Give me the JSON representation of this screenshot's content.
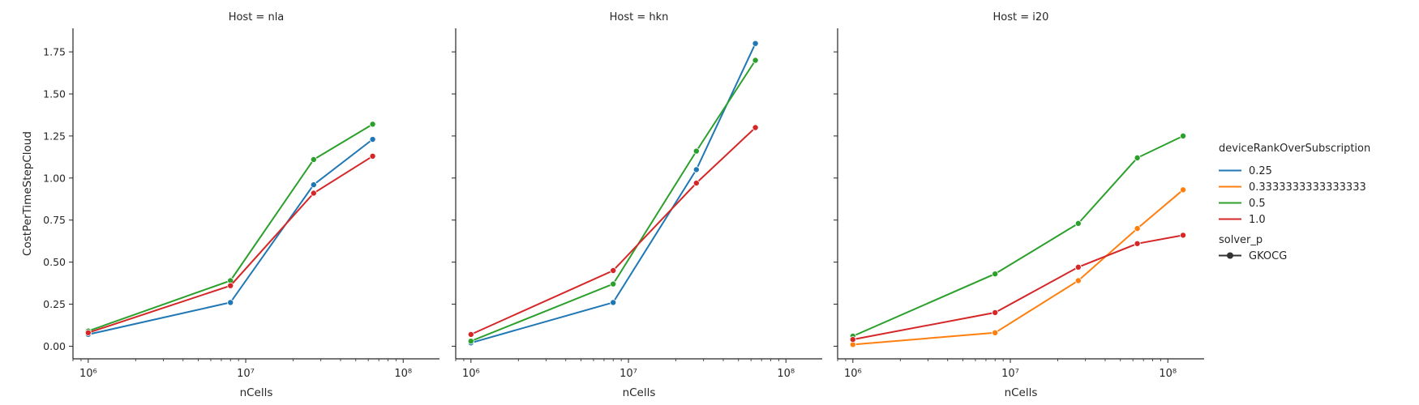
{
  "chart_data": [
    {
      "type": "line",
      "title": "Host = nla",
      "xlabel": "nCells",
      "ylabel": "CostPerTimeStepCloud",
      "xscale": "log",
      "xlim": [
        800000,
        170000000
      ],
      "ylim": [
        -0.075,
        1.89
      ],
      "yticks": [
        "0.00",
        "0.25",
        "0.50",
        "0.75",
        "1.00",
        "1.25",
        "1.50",
        "1.75"
      ],
      "xticks": [
        "10⁶",
        "10⁷",
        "10⁸"
      ],
      "series": [
        {
          "name": "0.25",
          "color": "#1f77b4",
          "points": [
            [
              1000000,
              0.07
            ],
            [
              8000000,
              0.26
            ],
            [
              27000000,
              0.96
            ],
            [
              64000000,
              1.23
            ]
          ]
        },
        {
          "name": "0.5",
          "color": "#2ca02c",
          "points": [
            [
              1000000,
              0.09
            ],
            [
              8000000,
              0.39
            ],
            [
              27000000,
              1.11
            ],
            [
              64000000,
              1.32
            ]
          ]
        },
        {
          "name": "1.0",
          "color": "#d62728",
          "points": [
            [
              1000000,
              0.08
            ],
            [
              8000000,
              0.36
            ],
            [
              27000000,
              0.91
            ],
            [
              64000000,
              1.13
            ]
          ]
        }
      ]
    },
    {
      "type": "line",
      "title": "Host = hkn",
      "xlabel": "nCells",
      "ylabel": "",
      "xscale": "log",
      "xlim": [
        800000,
        170000000
      ],
      "ylim": [
        -0.075,
        1.89
      ],
      "xticks": [
        "10⁶",
        "10⁷",
        "10⁸"
      ],
      "series": [
        {
          "name": "0.25",
          "color": "#1f77b4",
          "points": [
            [
              1000000,
              0.02
            ],
            [
              8000000,
              0.26
            ],
            [
              27000000,
              1.05
            ],
            [
              64000000,
              1.8
            ]
          ]
        },
        {
          "name": "0.5",
          "color": "#2ca02c",
          "points": [
            [
              1000000,
              0.03
            ],
            [
              8000000,
              0.37
            ],
            [
              27000000,
              1.16
            ],
            [
              64000000,
              1.7
            ]
          ]
        },
        {
          "name": "1.0",
          "color": "#d62728",
          "points": [
            [
              1000000,
              0.07
            ],
            [
              8000000,
              0.45
            ],
            [
              27000000,
              0.97
            ],
            [
              64000000,
              1.3
            ]
          ]
        }
      ]
    },
    {
      "type": "line",
      "title": "Host = i20",
      "xlabel": "nCells",
      "ylabel": "",
      "xscale": "log",
      "xlim": [
        800000,
        170000000
      ],
      "ylim": [
        -0.075,
        1.89
      ],
      "xticks": [
        "10⁶",
        "10⁷",
        "10⁸"
      ],
      "series": [
        {
          "name": "0.3333333333333333",
          "color": "#ff7f0e",
          "points": [
            [
              1000000,
              0.01
            ],
            [
              8000000,
              0.08
            ],
            [
              27000000,
              0.39
            ],
            [
              64000000,
              0.7
            ],
            [
              125000000,
              0.93
            ]
          ]
        },
        {
          "name": "0.5",
          "color": "#2ca02c",
          "points": [
            [
              1000000,
              0.06
            ],
            [
              8000000,
              0.43
            ],
            [
              27000000,
              0.73
            ],
            [
              64000000,
              1.12
            ],
            [
              125000000,
              1.25
            ]
          ]
        },
        {
          "name": "1.0",
          "color": "#d62728",
          "points": [
            [
              1000000,
              0.04
            ],
            [
              8000000,
              0.2
            ],
            [
              27000000,
              0.47
            ],
            [
              64000000,
              0.61
            ],
            [
              125000000,
              0.66
            ]
          ]
        }
      ]
    }
  ],
  "legend": {
    "hue_title": "deviceRankOverSubscription",
    "hue_items": [
      {
        "label": "0.25",
        "color": "#1f77b4"
      },
      {
        "label": "0.3333333333333333",
        "color": "#ff7f0e"
      },
      {
        "label": "0.5",
        "color": "#2ca02c"
      },
      {
        "label": "1.0",
        "color": "#d62728"
      }
    ],
    "style_title": "solver_p",
    "style_items": [
      {
        "label": "GKOCG",
        "color": "#333333"
      }
    ]
  }
}
